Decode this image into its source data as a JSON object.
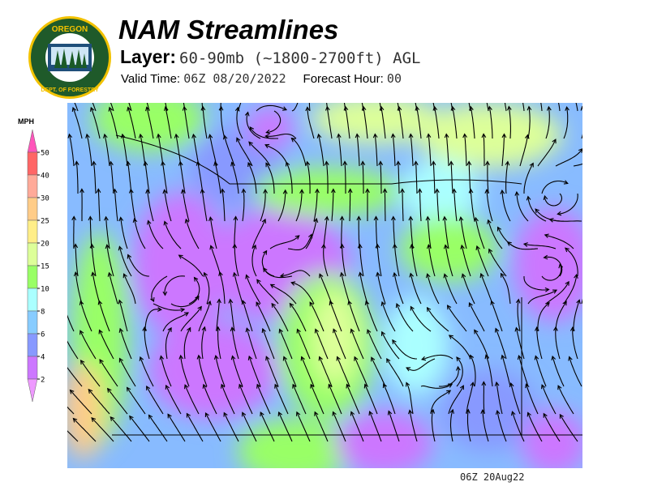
{
  "header": {
    "title": "NAM Streamlines",
    "layer_label": "Layer:",
    "layer_value": "60-90mb (~1800-2700ft) AGL",
    "valid_label": "Valid Time:",
    "valid_value": "06Z 08/20/2022",
    "forecast_label": "Forecast Hour:",
    "forecast_value": "00"
  },
  "logo": {
    "top_text": "OREGON",
    "bottom_text": "DEPARTMENT OF FORESTRY",
    "colors": {
      "ring": "#1f5a2a",
      "border": "#f2c200"
    }
  },
  "legend": {
    "unit": "MPH",
    "ticks": [
      "50",
      "40",
      "30",
      "25",
      "20",
      "15",
      "10",
      "8",
      "6",
      "4",
      "2"
    ],
    "colors": {
      "above": "#ff55bb",
      "40-50": "#ff6666",
      "30-40": "#ffaa99",
      "25-30": "#ffcc88",
      "20-25": "#ffee88",
      "15-20": "#ddff99",
      "10-15": "#99ff66",
      "8-10": "#aaffff",
      "6-8": "#88ccff",
      "4-6": "#8899ff",
      "2-4": "#cc77ff",
      "below": "#ee99ff"
    }
  },
  "footer": {
    "timestamp": "06Z 20Aug22"
  }
}
